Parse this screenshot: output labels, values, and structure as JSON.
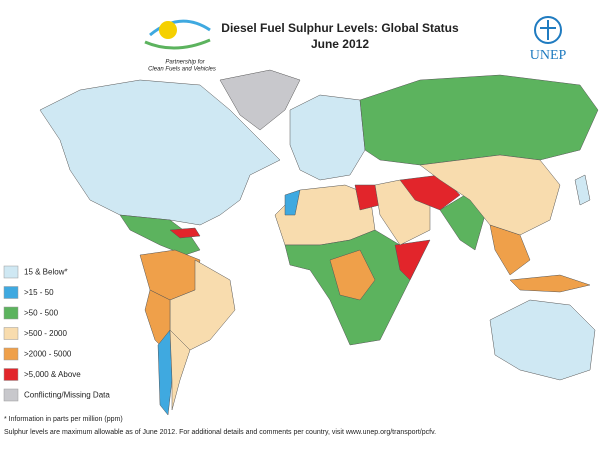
{
  "header": {
    "title": "Diesel Fuel Sulphur Levels: Global Status",
    "subtitle": "June 2012",
    "partner_logo": [
      "Partnership for",
      "Clean Fuels and Vehicles"
    ],
    "org_logo": "UNEP"
  },
  "legend": {
    "items": [
      {
        "label": "15 & Below*",
        "color": "#cfe8f3"
      },
      {
        "label": ">15 - 50",
        "color": "#3fa9e0"
      },
      {
        "label": ">50 - 500",
        "color": "#5cb35e"
      },
      {
        "label": ">500 - 2000",
        "color": "#f8dcae"
      },
      {
        "label": ">2000 - 5000",
        "color": "#efa04a"
      },
      {
        "label": ">5,000 & Above",
        "color": "#e2252b"
      },
      {
        "label": "Conflicting/Missing Data",
        "color": "#c8c8cc"
      }
    ]
  },
  "footnotes": [
    "* Information in parts per million (ppm)",
    "Sulphur levels are maximum allowable as of  June 2012.  For additional details and comments per country, visit www.unep.org/transport/pcfv."
  ]
}
